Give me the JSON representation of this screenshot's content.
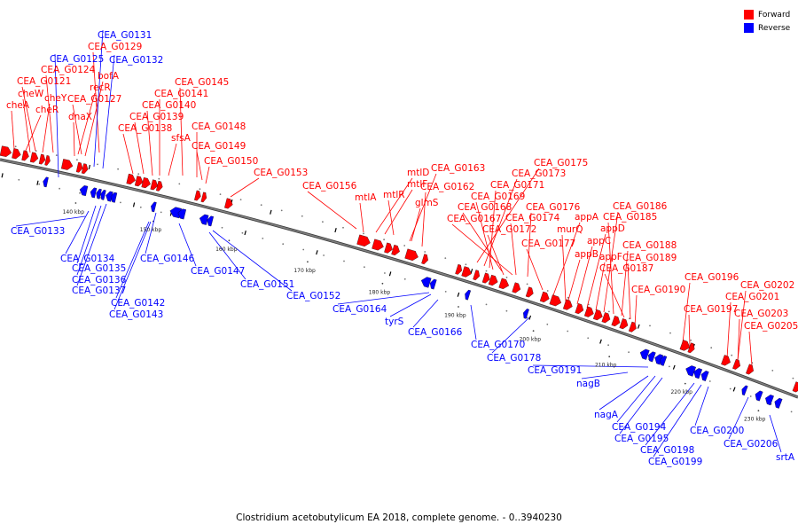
{
  "caption": "Clostridium acetobutylicum EA 2018, complete genome. - 0..3940230",
  "legend": [
    {
      "label": "Forward",
      "color": "#ff0000"
    },
    {
      "label": "Reverse",
      "color": "#0000ff"
    }
  ],
  "colors": {
    "forward": "#ff0000",
    "reverse": "#0000ff",
    "backbone": "#808080"
  },
  "ticks": [
    "140 kbp",
    "150 kbp",
    "160 kbp",
    "170 kbp",
    "180 kbp",
    "190 kbp",
    "200 kbp",
    "210 kbp",
    "220 kbp",
    "230 kbp"
  ],
  "forward_labels": [
    "CEA_G0129",
    "CEA_G0124",
    "CEA_G0121",
    "cheW",
    "cheA",
    "cheY",
    "cheR",
    "CEA_G0127",
    "recR",
    "bofA",
    "dnaX",
    "CEA_G0145",
    "CEA_G0141",
    "CEA_G0140",
    "CEA_G0139",
    "CEA_G0138",
    "sfsA",
    "CEA_G0148",
    "CEA_G0149",
    "CEA_G0150",
    "CEA_G0153",
    "CEA_G0156",
    "mtlA",
    "mtlD",
    "mtlF",
    "mtlR",
    "CEA_G0163",
    "glmS",
    "CEA_G0162",
    "CEA_G0175",
    "CEA_G0173",
    "CEA_G0171",
    "CEA_G0169",
    "CEA_G0168",
    "CEA_G0167",
    "CEA_G0176",
    "CEA_G0174",
    "CEA_G0172",
    "appA",
    "murQ",
    "CEA_G0177",
    "appC",
    "appB",
    "appD",
    "appF",
    "CEA_G0186",
    "CEA_G0185",
    "CEA_G0188",
    "CEA_G0189",
    "CEA_G0187",
    "CEA_G0190",
    "CEA_G0196",
    "CEA_G0197",
    "CEA_G0202",
    "CEA_G0201",
    "CEA_G0203",
    "CEA_G0205"
  ],
  "reverse_labels": [
    "CEA_G0131",
    "CEA_G0125",
    "CEA_G0132",
    "CEA_G0133",
    "CEA_G0134",
    "CEA_G0135",
    "CEA_G0136",
    "CEA_G0137",
    "CEA_G0142",
    "CEA_G0143",
    "CEA_G0146",
    "CEA_G0147",
    "CEA_G0151",
    "CEA_G0152",
    "CEA_G0164",
    "tyrS",
    "CEA_G0166",
    "CEA_G0170",
    "CEA_G0178",
    "CEA_G0191",
    "nagB",
    "nagA",
    "CEA_G0194",
    "CEA_G0195",
    "CEA_G0198",
    "CEA_G0199",
    "CEA_G0200",
    "CEA_G0206",
    "srtA"
  ]
}
